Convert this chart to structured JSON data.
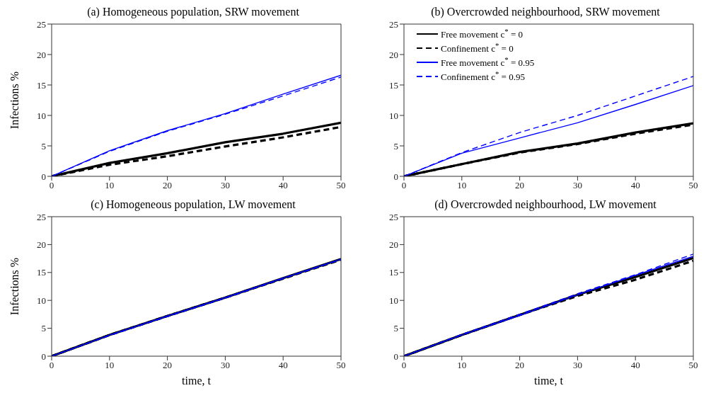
{
  "chart_data": [
    {
      "type": "line",
      "title": "(a) Homogeneous population, SRW movement",
      "ylabel": "Infections %",
      "x": [
        0,
        10,
        20,
        30,
        40,
        50
      ],
      "xlim": [
        0,
        50
      ],
      "xticks": [
        0,
        10,
        20,
        30,
        40,
        50
      ],
      "ylim": [
        0,
        25
      ],
      "yticks": [
        0,
        5,
        10,
        15,
        20,
        25
      ],
      "legend": false,
      "marker": "none",
      "series": [
        {
          "color": "#000000",
          "line_style": "solid",
          "values": [
            0,
            2.2,
            3.8,
            5.6,
            7.0,
            8.8
          ]
        },
        {
          "color": "#000000",
          "line_style": "dashed",
          "values": [
            0,
            1.9,
            3.3,
            4.9,
            6.4,
            8.1
          ]
        },
        {
          "color": "#0000ff",
          "line_style": "solid",
          "values": [
            0,
            4.2,
            7.5,
            10.3,
            13.5,
            16.6
          ]
        },
        {
          "color": "#0000ff",
          "line_style": "dashed",
          "values": [
            0,
            4.1,
            7.4,
            10.2,
            13.2,
            16.3
          ]
        }
      ]
    },
    {
      "type": "line",
      "title": "(b) Overcrowded neighbourhood, SRW movement",
      "x": [
        0,
        10,
        20,
        30,
        40,
        50
      ],
      "xlim": [
        0,
        50
      ],
      "xticks": [
        0,
        10,
        20,
        30,
        40,
        50
      ],
      "ylim": [
        0,
        25
      ],
      "yticks": [
        0,
        5,
        10,
        15,
        20,
        25
      ],
      "legend": "top left",
      "marker": "none",
      "series": [
        {
          "name": "Free movement c$^{*}$ = 0",
          "color": "#000000",
          "line_style": "solid",
          "values": [
            0,
            2.0,
            4.0,
            5.4,
            7.2,
            8.7
          ]
        },
        {
          "name": "Confinement c$^{*}$ = 0",
          "color": "#000000",
          "line_style": "dashed",
          "values": [
            0,
            2.0,
            3.9,
            5.3,
            7.0,
            8.5
          ]
        },
        {
          "name": "Free movement c$^{*}$ = 0.95",
          "color": "#0000ff",
          "line_style": "solid",
          "values": [
            0,
            3.8,
            6.3,
            8.8,
            11.8,
            14.9
          ]
        },
        {
          "name": "Confinement c$^{*}$ = 0.95",
          "color": "#0000ff",
          "line_style": "dashed",
          "values": [
            0,
            3.9,
            7.2,
            10.0,
            13.2,
            16.4
          ]
        }
      ]
    },
    {
      "type": "line",
      "title": "(c) Homogeneous population, LW movement",
      "xlabel": "time, t",
      "ylabel": "Infections %",
      "x": [
        0,
        10,
        20,
        30,
        40,
        50
      ],
      "xlim": [
        0,
        50
      ],
      "xticks": [
        0,
        10,
        20,
        30,
        40,
        50
      ],
      "ylim": [
        0,
        25
      ],
      "yticks": [
        0,
        5,
        10,
        15,
        20,
        25
      ],
      "legend": false,
      "marker": "none",
      "series": [
        {
          "color": "#000000",
          "line_style": "solid",
          "values": [
            0,
            3.8,
            7.2,
            10.5,
            14.0,
            17.4
          ]
        },
        {
          "color": "#000000",
          "line_style": "dashed",
          "values": [
            0,
            3.8,
            7.2,
            10.5,
            13.9,
            17.3
          ]
        },
        {
          "color": "#0000ff",
          "line_style": "solid",
          "values": [
            0,
            3.8,
            7.2,
            10.5,
            14.0,
            17.4
          ]
        },
        {
          "color": "#0000ff",
          "line_style": "dashed",
          "values": [
            0,
            3.7,
            7.1,
            10.4,
            13.9,
            17.3
          ]
        }
      ]
    },
    {
      "type": "line",
      "title": "(d) Overcrowded neighbourhood, LW movement",
      "xlabel": "time, t",
      "x": [
        0,
        10,
        20,
        30,
        40,
        50
      ],
      "xlim": [
        0,
        50
      ],
      "xticks": [
        0,
        10,
        20,
        30,
        40,
        50
      ],
      "ylim": [
        0,
        25
      ],
      "yticks": [
        0,
        5,
        10,
        15,
        20,
        25
      ],
      "legend": false,
      "marker": "none",
      "series": [
        {
          "color": "#000000",
          "line_style": "solid",
          "values": [
            0,
            3.8,
            7.4,
            11.0,
            14.2,
            17.6
          ]
        },
        {
          "color": "#000000",
          "line_style": "dashed",
          "values": [
            0,
            3.8,
            7.4,
            10.8,
            13.7,
            17.1
          ]
        },
        {
          "color": "#0000ff",
          "line_style": "solid",
          "values": [
            0,
            3.8,
            7.3,
            11.0,
            14.5,
            17.9
          ]
        },
        {
          "color": "#0000ff",
          "line_style": "dashed",
          "values": [
            0,
            3.9,
            7.5,
            11.2,
            14.6,
            18.3
          ]
        }
      ]
    }
  ]
}
